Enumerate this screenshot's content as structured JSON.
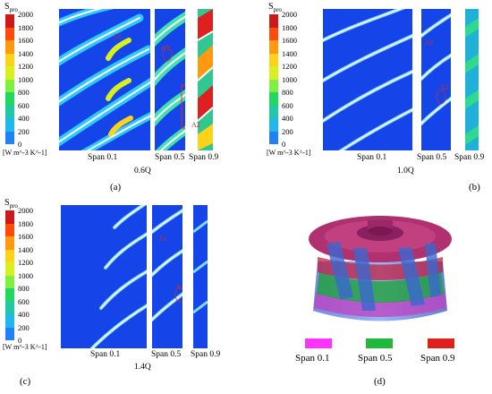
{
  "panels": [
    {
      "id": "a",
      "letter": "(a)",
      "flow": "0.6Q",
      "spans": [
        "Span 0.1",
        "Span 0.5",
        "Span 0.9"
      ],
      "markers": [
        "A1",
        "A1",
        "A2"
      ]
    },
    {
      "id": "b",
      "letter": "(b)",
      "flow": "1.0Q",
      "spans": [
        "Span 0.1",
        "Span 0.5",
        "Span 0.9"
      ],
      "markers": [
        "A1",
        "A2"
      ]
    },
    {
      "id": "c",
      "letter": "(c)",
      "flow": "1.4Q",
      "spans": [
        "Span 0.1",
        "Span 0.5",
        "Span 0.9"
      ],
      "markers": [
        "A1",
        "A2"
      ]
    }
  ],
  "colorbar": {
    "title_main": "S",
    "title_sub": "pro",
    "ticks": [
      "2000",
      "1800",
      "1600",
      "1400",
      "1200",
      "1000",
      "800",
      "600",
      "400",
      "200",
      "0"
    ],
    "unit": "[W m^-3 K^-1]",
    "colors": [
      "#cc1a1a",
      "#ff4a0a",
      "#ff9a10",
      "#ffd21a",
      "#d8f020",
      "#80f040",
      "#20d860",
      "#20c8a8",
      "#20b8e8",
      "#2080f8",
      "#1040f0"
    ]
  },
  "impeller": {
    "letter": "(d)",
    "legend": [
      {
        "label": "Span 0.1",
        "color": "#ff33ff"
      },
      {
        "label": "Span 0.5",
        "color": "#1fb83a"
      },
      {
        "label": "Span 0.9",
        "color": "#e0201c"
      }
    ]
  }
}
